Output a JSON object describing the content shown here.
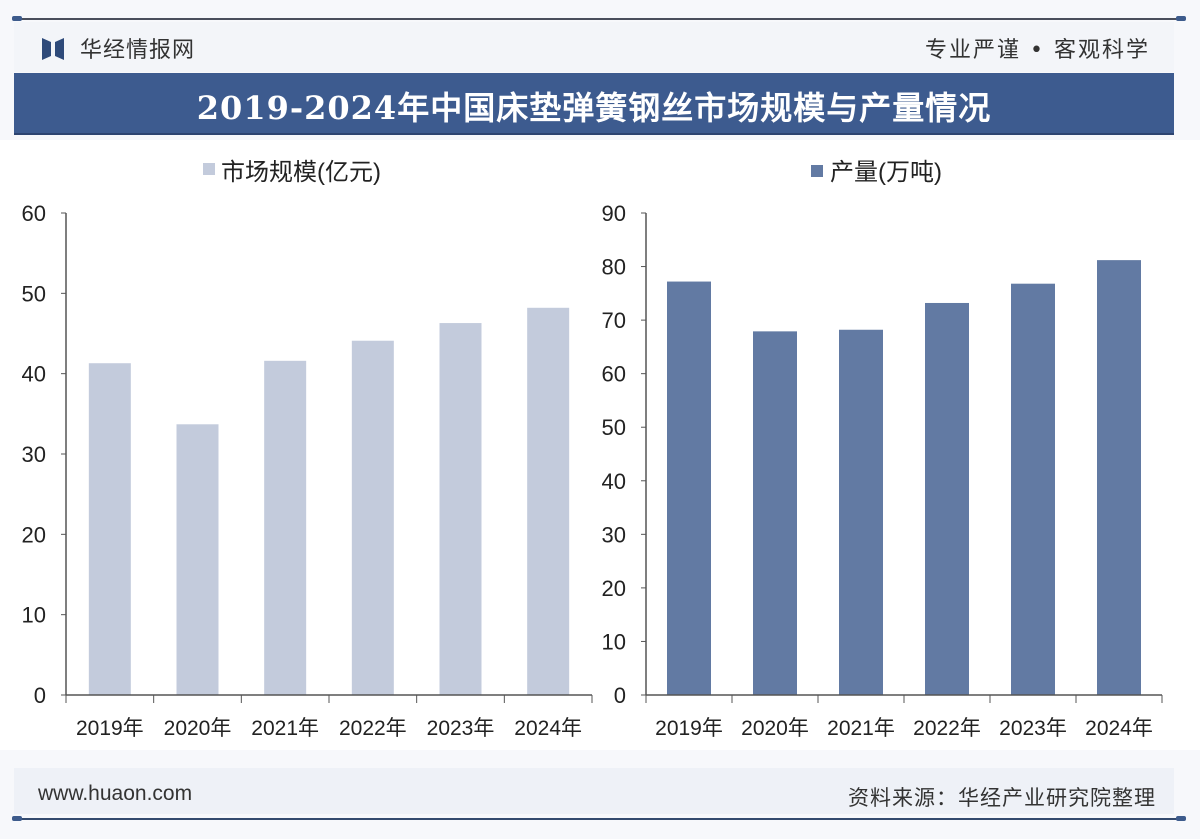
{
  "header": {
    "brand": "华经情报网",
    "motto": "专业严谨 • 客观科学",
    "title": "2019-2024年中国床垫弹簧钢丝市场规模与产量情况"
  },
  "footer": {
    "website": "www.huaon.com",
    "source": "资料来源：华经产业研究院整理"
  },
  "colors": {
    "title_band": "#3d5b8f",
    "market_bar": "#c3cbdc",
    "production_bar": "#627aa3",
    "axis": "#555555"
  },
  "chart_data": [
    {
      "type": "bar",
      "title": "",
      "legend": "市场规模(亿元)",
      "legend_position": "top-center",
      "categories": [
        "2019年",
        "2020年",
        "2021年",
        "2022年",
        "2023年",
        "2024年"
      ],
      "values": [
        41.3,
        33.7,
        41.6,
        44.1,
        46.3,
        48.2
      ],
      "ylim": [
        0,
        60
      ],
      "yticks": [
        "0",
        "10",
        "20",
        "30",
        "40",
        "50",
        "60"
      ],
      "xlabel": "",
      "ylabel": "",
      "grid": false
    },
    {
      "type": "bar",
      "title": "",
      "legend": "产量(万吨)",
      "legend_position": "top-center",
      "categories": [
        "2019年",
        "2020年",
        "2021年",
        "2022年",
        "2023年",
        "2024年"
      ],
      "values": [
        77.2,
        67.9,
        68.2,
        73.2,
        76.8,
        81.2
      ],
      "ylim": [
        0,
        90
      ],
      "yticks": [
        "0",
        "10",
        "20",
        "30",
        "40",
        "50",
        "60",
        "70",
        "80",
        "90"
      ],
      "xlabel": "",
      "ylabel": "",
      "grid": false
    }
  ]
}
